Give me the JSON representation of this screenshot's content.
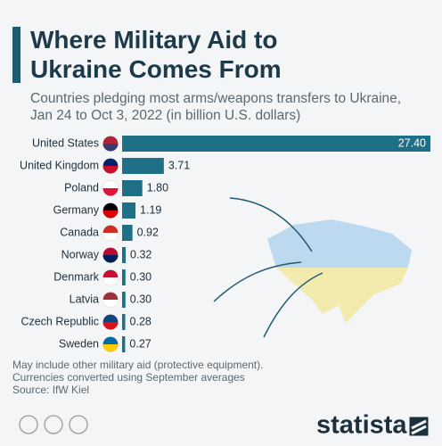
{
  "chart_data": {
    "type": "bar",
    "orientation": "horizontal",
    "title": "Where Military Aid to Ukraine Comes From",
    "subtitle": "Countries pledging most arms/weapons transfers to Ukraine, Jan 24 to Oct 3, 2022 (in billion U.S. dollars)",
    "categories": [
      "United States",
      "United Kingdom",
      "Poland",
      "Germany",
      "Canada",
      "Norway",
      "Denmark",
      "Latvia",
      "Czech Republic",
      "Sweden"
    ],
    "values": [
      27.4,
      3.71,
      1.8,
      1.19,
      0.92,
      0.32,
      0.3,
      0.3,
      0.28,
      0.27
    ],
    "value_labels": [
      "27.40",
      "3.71",
      "1.80",
      "1.19",
      "0.92",
      "0.32",
      "0.30",
      "0.30",
      "0.28",
      "0.27"
    ],
    "color": "#1f6f87",
    "notes": [
      "May include other military aid (protective equipment).",
      "Currencies converted using September averages",
      "Source: IfW Kiel"
    ],
    "logo": "statista"
  }
}
